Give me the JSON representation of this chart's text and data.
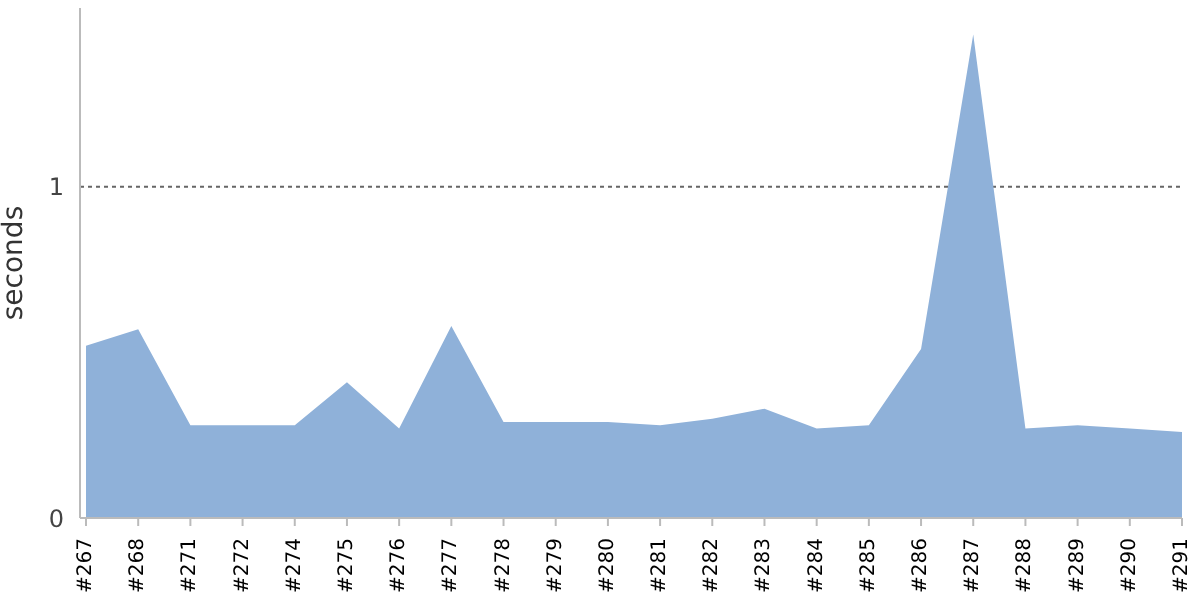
{
  "chart_data": {
    "type": "area",
    "ylabel": "seconds",
    "categories": [
      "#267",
      "#268",
      "#271",
      "#272",
      "#274",
      "#275",
      "#276",
      "#277",
      "#278",
      "#279",
      "#280",
      "#281",
      "#282",
      "#283",
      "#284",
      "#285",
      "#286",
      "#287",
      "#288",
      "#289",
      "#290",
      "#291"
    ],
    "series": [
      {
        "color": "#8fb1d9",
        "values": [
          0.52,
          0.57,
          0.28,
          0.28,
          0.28,
          0.41,
          0.27,
          0.58,
          0.29,
          0.29,
          0.29,
          0.28,
          0.3,
          0.33,
          0.27,
          0.28,
          0.51,
          1.46,
          0.27,
          0.28,
          0.27,
          0.26
        ]
      }
    ],
    "ylim": [
      0,
      1.54
    ],
    "yticks": [
      0,
      1
    ],
    "grid": "y",
    "legend": false
  }
}
